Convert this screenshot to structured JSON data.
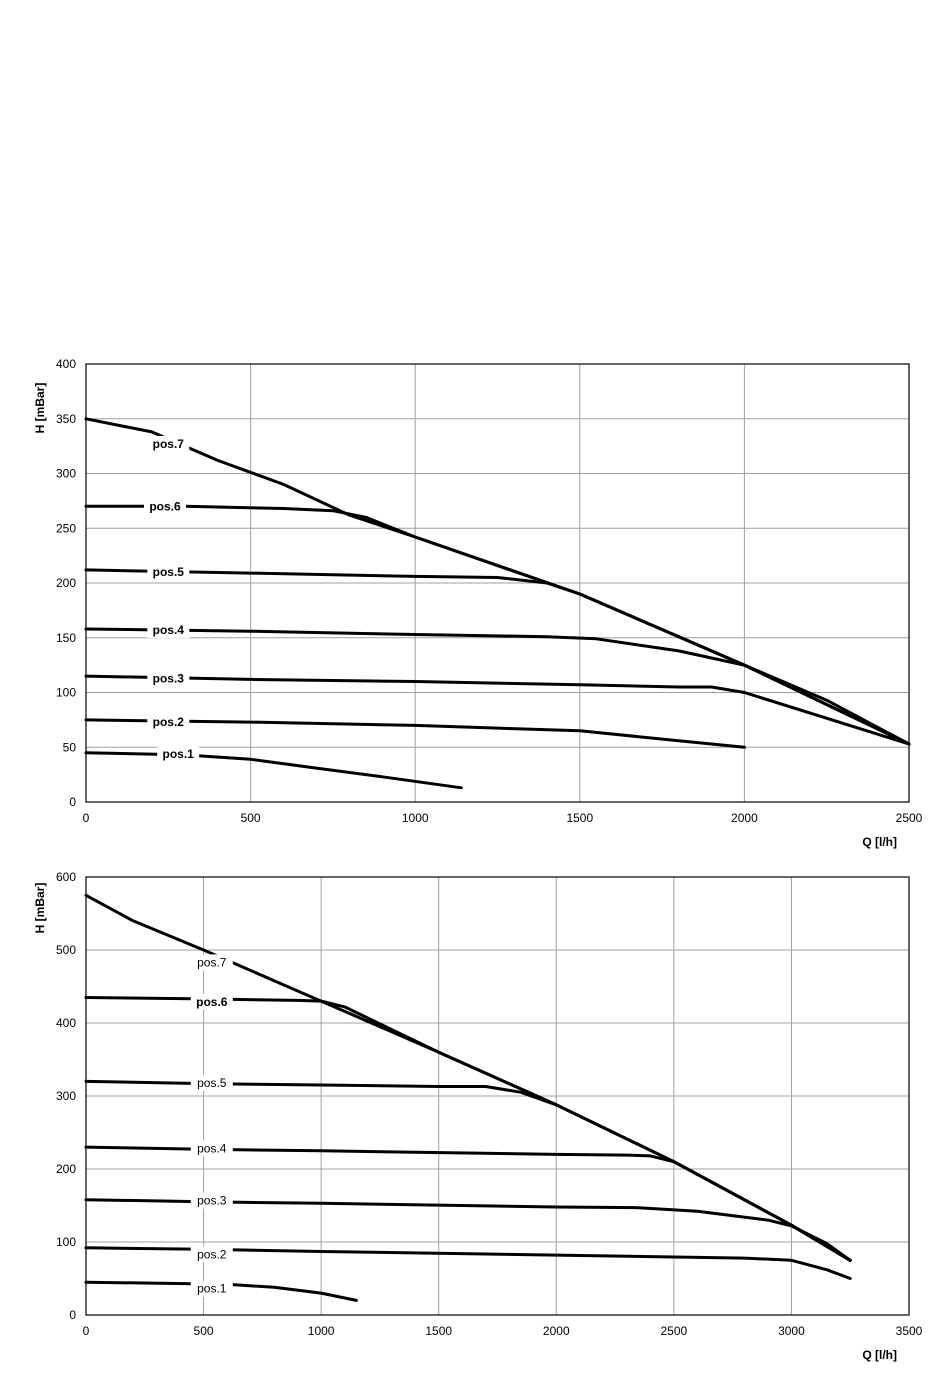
{
  "chart_data": [
    {
      "type": "line",
      "xlabel": "Q [l/h]",
      "ylabel": "H [mBar]",
      "xlim": [
        0,
        2500
      ],
      "ylim": [
        0,
        400
      ],
      "xticks": [
        "0",
        "500",
        "1000",
        "1500",
        "2000",
        "2500"
      ],
      "yticks": [
        "0",
        "50",
        "100",
        "150",
        "200",
        "250",
        "300",
        "350",
        "400"
      ],
      "grid": true,
      "series": [
        {
          "name": "pos.1",
          "label_at": [
            280,
            44
          ],
          "bold": true,
          "points": [
            [
              0,
              45
            ],
            [
              300,
              43
            ],
            [
              500,
              39
            ],
            [
              700,
              31
            ],
            [
              900,
              23
            ],
            [
              1140,
              13
            ]
          ]
        },
        {
          "name": "pos.2",
          "label_at": [
            250,
            73
          ],
          "bold": true,
          "points": [
            [
              0,
              75
            ],
            [
              500,
              73
            ],
            [
              1000,
              70
            ],
            [
              1500,
              65
            ],
            [
              1800,
              56
            ],
            [
              2000,
              50
            ]
          ]
        },
        {
          "name": "pos.3",
          "label_at": [
            250,
            113
          ],
          "bold": true,
          "points": [
            [
              0,
              115
            ],
            [
              500,
              112
            ],
            [
              1000,
              110
            ],
            [
              1500,
              107
            ],
            [
              1800,
              105
            ],
            [
              1900,
              105
            ],
            [
              2000,
              100
            ],
            [
              2500,
              53
            ]
          ]
        },
        {
          "name": "pos.4",
          "label_at": [
            250,
            157
          ],
          "bold": true,
          "points": [
            [
              0,
              158
            ],
            [
              500,
              156
            ],
            [
              1000,
              153
            ],
            [
              1400,
              151
            ],
            [
              1550,
              149
            ],
            [
              1800,
              138
            ],
            [
              2000,
              125
            ],
            [
              2250,
              93
            ],
            [
              2500,
              53
            ]
          ]
        },
        {
          "name": "pos.5",
          "label_at": [
            250,
            210
          ],
          "bold": true,
          "points": [
            [
              0,
              212
            ],
            [
              500,
              209
            ],
            [
              1000,
              206
            ],
            [
              1250,
              205
            ],
            [
              1400,
              200
            ],
            [
              1500,
              190
            ],
            [
              2000,
              125
            ],
            [
              2500,
              53
            ]
          ]
        },
        {
          "name": "pos.6",
          "label_at": [
            240,
            270
          ],
          "bold": true,
          "points": [
            [
              0,
              270
            ],
            [
              300,
              270
            ],
            [
              600,
              268
            ],
            [
              750,
              266
            ],
            [
              850,
              260
            ],
            [
              1000,
              242
            ],
            [
              1500,
              190
            ],
            [
              2000,
              125
            ],
            [
              2500,
              53
            ]
          ]
        },
        {
          "name": "pos.7",
          "label_at": [
            250,
            327
          ],
          "bold": true,
          "points": [
            [
              0,
              350
            ],
            [
              200,
              338
            ],
            [
              400,
              312
            ],
            [
              600,
              290
            ],
            [
              800,
              262
            ],
            [
              1000,
              242
            ],
            [
              1500,
              190
            ],
            [
              2000,
              125
            ],
            [
              2500,
              53
            ]
          ]
        }
      ]
    },
    {
      "type": "line",
      "xlabel": "Q [l/h]",
      "ylabel": "H [mBar]",
      "xlim": [
        0,
        3500
      ],
      "ylim": [
        0,
        600
      ],
      "xticks": [
        "0",
        "500",
        "1000",
        "1500",
        "2000",
        "2500",
        "3000",
        "3500"
      ],
      "yticks": [
        "0",
        "100",
        "200",
        "300",
        "400",
        "500",
        "600"
      ],
      "grid": true,
      "series": [
        {
          "name": "pos.1",
          "label_at": [
            535,
            36
          ],
          "bold": false,
          "points": [
            [
              0,
              45
            ],
            [
              600,
              42
            ],
            [
              800,
              38
            ],
            [
              1000,
              30
            ],
            [
              1150,
              20
            ]
          ]
        },
        {
          "name": "pos.2",
          "label_at": [
            535,
            83
          ],
          "bold": false,
          "points": [
            [
              0,
              92
            ],
            [
              500,
              90
            ],
            [
              1000,
              87
            ],
            [
              2000,
              82
            ],
            [
              2800,
              78
            ],
            [
              3000,
              75
            ],
            [
              3150,
              62
            ],
            [
              3250,
              50
            ]
          ]
        },
        {
          "name": "pos.3",
          "label_at": [
            535,
            157
          ],
          "bold": false,
          "points": [
            [
              0,
              158
            ],
            [
              500,
              155
            ],
            [
              1000,
              153
            ],
            [
              2000,
              148
            ],
            [
              2350,
              147
            ],
            [
              2600,
              142
            ],
            [
              2900,
              130
            ],
            [
              3000,
              122
            ],
            [
              3150,
              98
            ],
            [
              3250,
              75
            ]
          ]
        },
        {
          "name": "pos.4",
          "label_at": [
            535,
            228
          ],
          "bold": false,
          "points": [
            [
              0,
              230
            ],
            [
              500,
              227
            ],
            [
              1000,
              225
            ],
            [
              2000,
              220
            ],
            [
              2300,
              219
            ],
            [
              2400,
              218
            ],
            [
              2500,
              210
            ],
            [
              3000,
              123
            ],
            [
              3250,
              75
            ]
          ]
        },
        {
          "name": "pos.5",
          "label_at": [
            535,
            318
          ],
          "bold": false,
          "points": [
            [
              0,
              320
            ],
            [
              500,
              317
            ],
            [
              1000,
              315
            ],
            [
              1500,
              313
            ],
            [
              1700,
              313
            ],
            [
              1850,
              305
            ],
            [
              2000,
              288
            ],
            [
              2500,
              210
            ],
            [
              3000,
              123
            ],
            [
              3250,
              75
            ]
          ]
        },
        {
          "name": "pos.6",
          "label_at": [
            535,
            429
          ],
          "bold": true,
          "points": [
            [
              0,
              435
            ],
            [
              500,
              433
            ],
            [
              900,
              431
            ],
            [
              1000,
              430
            ],
            [
              1100,
              422
            ],
            [
              1500,
              360
            ],
            [
              2000,
              288
            ],
            [
              2500,
              210
            ],
            [
              3000,
              123
            ],
            [
              3250,
              75
            ]
          ]
        },
        {
          "name": "pos.7",
          "label_at": [
            535,
            483
          ],
          "bold": false,
          "points": [
            [
              0,
              575
            ],
            [
              200,
              540
            ],
            [
              500,
              500
            ],
            [
              800,
              458
            ],
            [
              1000,
              430
            ],
            [
              1500,
              360
            ],
            [
              2000,
              288
            ],
            [
              2500,
              210
            ],
            [
              3000,
              123
            ],
            [
              3250,
              75
            ]
          ]
        }
      ]
    }
  ]
}
